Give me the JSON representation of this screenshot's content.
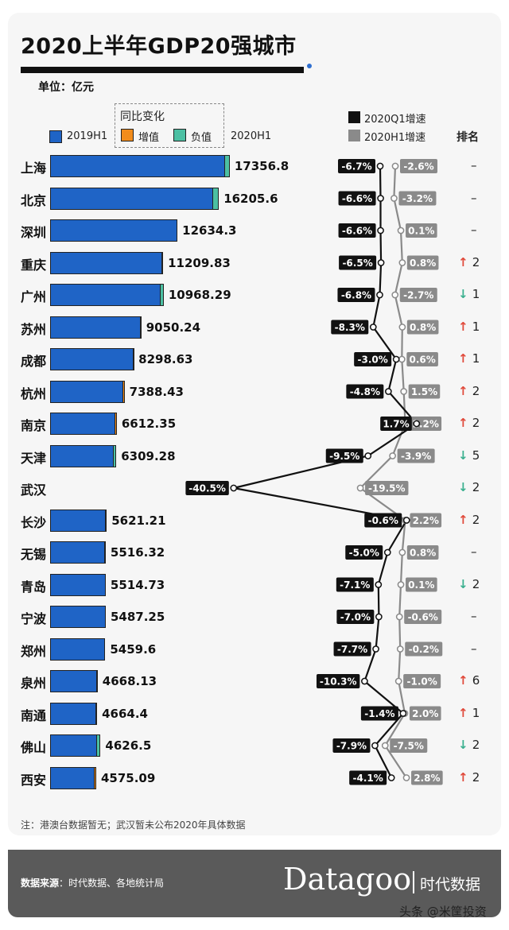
{
  "header": {
    "title": "2020上半年GDP20强城市",
    "unit": "单位：亿元"
  },
  "legend": {
    "h1_2019": "2019H1",
    "yoy_title": "同比变化",
    "increase": "增值",
    "decrease": "负值",
    "h1_2020": "2020H1",
    "q1_growth": "2020Q1增速",
    "h1_growth": "2020H1增速",
    "rank": "排名"
  },
  "colors": {
    "h1_2019": "#1f64c6",
    "increase": "#f28c1b",
    "decrease": "#4cc0a3",
    "q1": "#111111",
    "h1": "#8a8a8a",
    "arrow_up": "#e04a3b",
    "arrow_down": "#3bb08f"
  },
  "chart_data": {
    "type": "bar",
    "categories": [
      "上海",
      "北京",
      "深圳",
      "重庆",
      "广州",
      "苏州",
      "成都",
      "杭州",
      "南京",
      "天津",
      "武汉",
      "长沙",
      "无锡",
      "青岛",
      "宁波",
      "郑州",
      "泉州",
      "南通",
      "佛山",
      "西安"
    ],
    "values_2020h1": [
      17356.8,
      16205.6,
      12634.3,
      11209.83,
      10968.29,
      9050.24,
      8298.63,
      7388.43,
      6612.35,
      6309.28,
      null,
      5621.21,
      5516.32,
      5514.73,
      5487.25,
      5459.6,
      4668.13,
      4664.4,
      4626.5,
      4575.09
    ],
    "value_labels": [
      "17356.8",
      "16205.6",
      "12634.3",
      "11209.83",
      "10968.29",
      "9050.24",
      "8298.63",
      "7388.43",
      "6612.35",
      "6309.28",
      "",
      "5621.21",
      "5516.32",
      "5514.73",
      "5487.25",
      "5459.6",
      "4668.13",
      "4664.4",
      "4626.5",
      "4575.09"
    ],
    "yoy_change_pct": [
      -2.6,
      -3.2,
      0.1,
      0.8,
      -2.7,
      0.8,
      0.6,
      1.5,
      2.2,
      -3.9,
      -19.5,
      2.2,
      0.8,
      0.1,
      -0.6,
      -0.2,
      -1.0,
      2.0,
      -7.5,
      2.8
    ],
    "q1_growth_labels": [
      "-6.7%",
      "-6.6%",
      "-6.6%",
      "-6.5%",
      "-6.8%",
      "-8.3%",
      "-3.0%",
      "-4.8%",
      "1.7%",
      "-9.5%",
      "-40.5%",
      "-0.6%",
      "-5.0%",
      "-7.1%",
      "-7.0%",
      "-7.7%",
      "-10.3%",
      "-1.4%",
      "-7.9%",
      "-4.1%"
    ],
    "q1_growth": [
      -6.7,
      -6.6,
      -6.6,
      -6.5,
      -6.8,
      -8.3,
      -3.0,
      -4.8,
      1.7,
      -9.5,
      -40.5,
      -0.6,
      -5.0,
      -7.1,
      -7.0,
      -7.7,
      -10.3,
      -1.4,
      -7.9,
      -4.1
    ],
    "h1_growth_labels": [
      "-2.6%",
      "-3.2%",
      "0.1%",
      "0.8%",
      "-2.7%",
      "0.8%",
      "0.6%",
      "1.5%",
      "2.2%",
      "-3.9%",
      "-19.5%",
      "2.2%",
      "0.8%",
      "0.1%",
      "-0.6%",
      "-0.2%",
      "-1.0%",
      "2.0%",
      "-7.5%",
      "2.8%"
    ],
    "h1_growth": [
      -2.6,
      -3.2,
      0.1,
      0.8,
      -2.7,
      0.8,
      0.6,
      1.5,
      2.2,
      -3.9,
      -19.5,
      2.2,
      0.8,
      0.1,
      -0.6,
      -0.2,
      -1.0,
      2.0,
      -7.5,
      2.8
    ],
    "rank_direction": [
      "none",
      "none",
      "none",
      "up",
      "down",
      "up",
      "up",
      "up",
      "up",
      "down",
      "down",
      "up",
      "none",
      "down",
      "none",
      "none",
      "up",
      "up",
      "down",
      "up"
    ],
    "rank_change": [
      "–",
      "–",
      "–",
      "2",
      "1",
      "1",
      "1",
      "2",
      "2",
      "5",
      "2",
      "2",
      "–",
      "2",
      "–",
      "–",
      "6",
      "1",
      "2",
      "2"
    ]
  },
  "footer": {
    "note": "注：港澳台数据暂无；武汉暂未公布2020年具体数据",
    "source_label": "数据来源",
    "source_text": "：时代数据、各地统计局",
    "brand": "Datagoo",
    "brand_cn": "时代数据",
    "watermark": "头条 @米筐投资"
  }
}
